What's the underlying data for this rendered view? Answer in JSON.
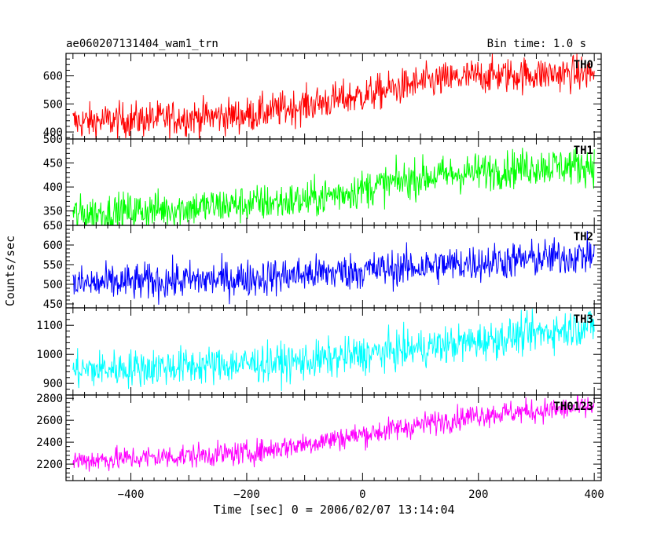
{
  "header": {
    "title": "ae060207131404_wam1_trn",
    "bin_time": "Bin time: 1.0 s"
  },
  "chart_data": {
    "type": "line",
    "title": "ae060207131404_wam1_trn",
    "xlabel": "Time [sec] 0 = 2006/02/07 13:14:04",
    "ylabel": "Counts/sec",
    "xlim": [
      -512,
      412
    ],
    "x_ticks": [
      -400,
      -200,
      0,
      200,
      400
    ],
    "x_tick_labels": [
      "−400",
      "−200",
      "0",
      "200",
      "400"
    ],
    "x_range": [
      -500,
      400
    ],
    "bin_time_s": 1.0,
    "panels": [
      {
        "name": "TH0",
        "color": "#ff0000",
        "ylim": [
          375,
          680
        ],
        "y_ticks": [
          400,
          500,
          600
        ],
        "trend_x": [
          -500,
          -200,
          0,
          100,
          200,
          300,
          400
        ],
        "trend_y": [
          435,
          460,
          530,
          575,
          600,
          605,
          610
        ],
        "noise": 32
      },
      {
        "name": "TH1",
        "color": "#00ff00",
        "ylim": [
          320,
          500
        ],
        "y_ticks": [
          350,
          400,
          450,
          500
        ],
        "trend_x": [
          -500,
          -100,
          100,
          300,
          400
        ],
        "trend_y": [
          342,
          372,
          420,
          443,
          445
        ],
        "noise": 20
      },
      {
        "name": "TH2",
        "color": "#0000ff",
        "ylim": [
          440,
          650
        ],
        "y_ticks": [
          450,
          500,
          550,
          600,
          650
        ],
        "trend_x": [
          -500,
          -200,
          100,
          400
        ],
        "trend_y": [
          500,
          515,
          545,
          575
        ],
        "noise": 24
      },
      {
        "name": "TH3",
        "color": "#00ffff",
        "ylim": [
          860,
          1160
        ],
        "y_ticks": [
          900,
          1000,
          1100
        ],
        "trend_x": [
          -500,
          -100,
          200,
          400
        ],
        "trend_y": [
          945,
          975,
          1045,
          1100
        ],
        "noise": 33
      },
      {
        "name": "TH0123",
        "color": "#ff00ff",
        "ylim": [
          2050,
          2830
        ],
        "y_ticks": [
          2200,
          2400,
          2600,
          2800
        ],
        "trend_x": [
          -500,
          -200,
          0,
          200,
          400
        ],
        "trend_y": [
          2230,
          2300,
          2470,
          2650,
          2720
        ],
        "noise": 55
      }
    ]
  }
}
